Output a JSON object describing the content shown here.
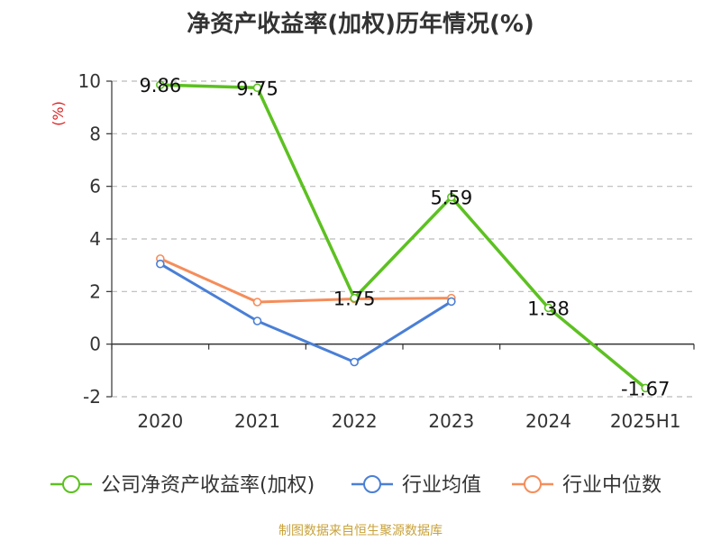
{
  "title": "净资产收益率(加权)历年情况(%)",
  "source": "制图数据来自恒生聚源数据库",
  "chart_data": {
    "type": "line",
    "title": "净资产收益率(加权)历年情况(%)",
    "ylabel": "(%)",
    "xlabel": "",
    "categories": [
      "2020",
      "2021",
      "2022",
      "2023",
      "2024",
      "2025H1"
    ],
    "ylim": [
      -2,
      10
    ],
    "yticks": [
      -2,
      0,
      2,
      4,
      6,
      8,
      10
    ],
    "grid": true,
    "legend_position": "bottom",
    "series": [
      {
        "name": "公司净资产收益率(加权)",
        "color": "#5cc120",
        "values": [
          9.86,
          9.75,
          1.75,
          5.59,
          1.38,
          -1.67
        ],
        "labels": [
          "9.86",
          "9.75",
          "1.75",
          "5.59",
          "1.38",
          "-1.67"
        ]
      },
      {
        "name": "行业均值",
        "color": "#4a7fd6",
        "values": [
          3.05,
          0.88,
          -0.68,
          1.62,
          null,
          null
        ]
      },
      {
        "name": "行业中位数",
        "color": "#f58d5a",
        "values": [
          3.25,
          1.6,
          1.72,
          1.75,
          null,
          null
        ]
      }
    ]
  }
}
